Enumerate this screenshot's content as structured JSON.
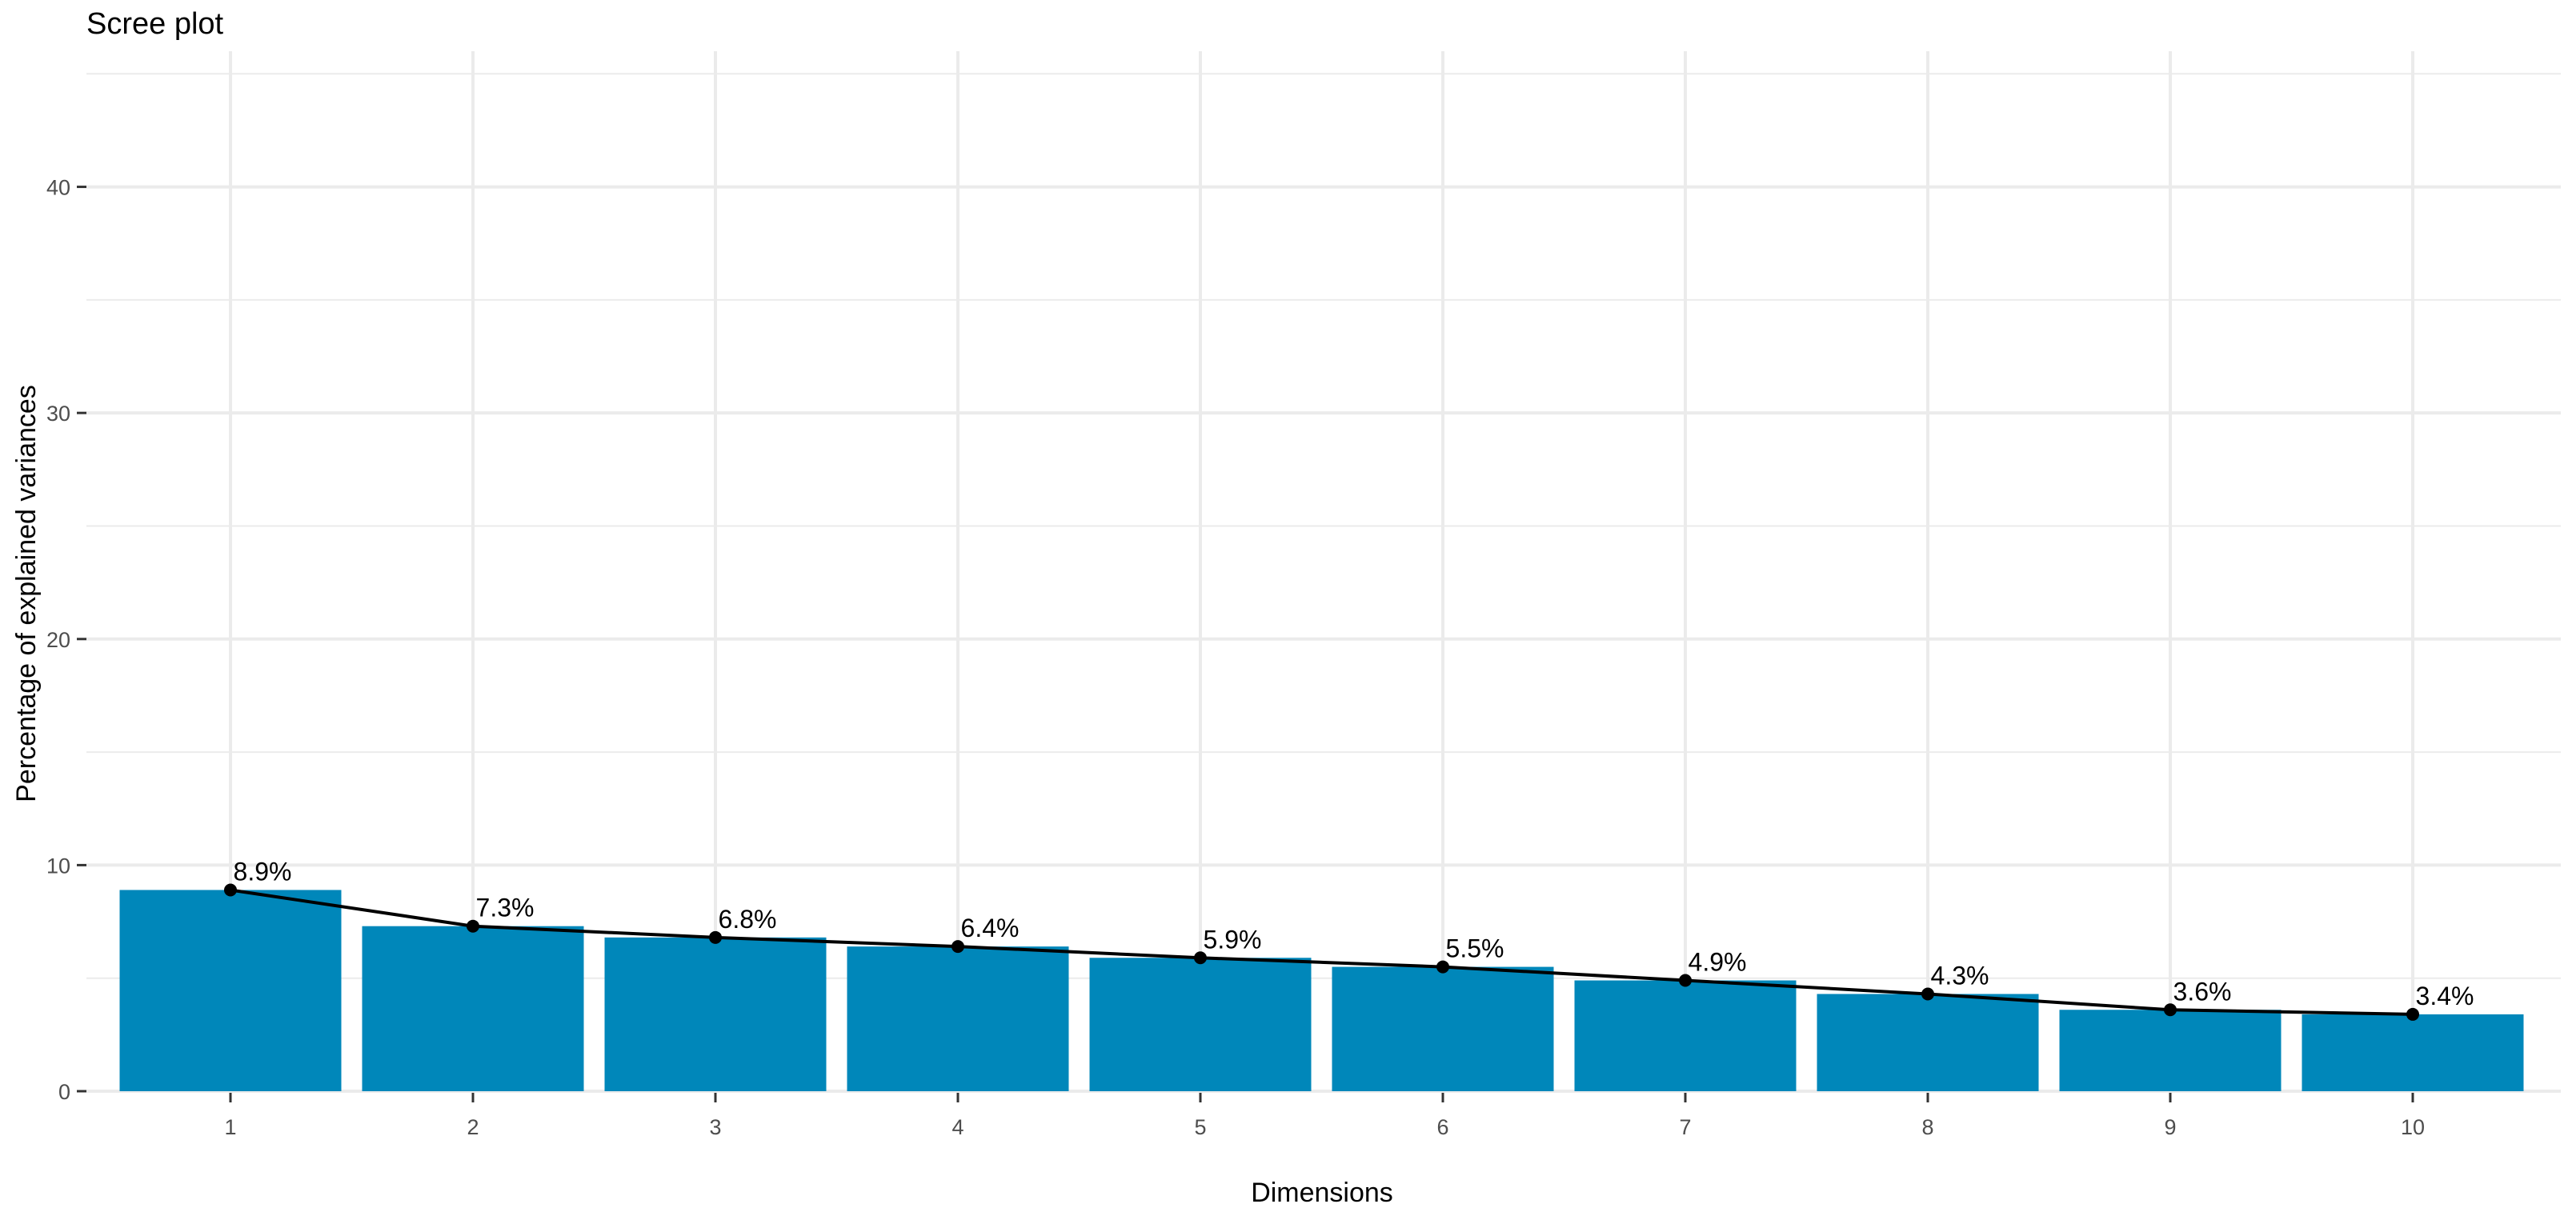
{
  "chart_data": {
    "type": "bar",
    "title": "Scree plot",
    "xlabel": "Dimensions",
    "ylabel": "Percentage of explained variances",
    "categories": [
      "1",
      "2",
      "3",
      "4",
      "5",
      "6",
      "7",
      "8",
      "9",
      "10"
    ],
    "values": [
      8.9,
      7.3,
      6.8,
      6.4,
      5.9,
      5.5,
      4.9,
      4.3,
      3.6,
      3.4
    ],
    "data_labels": [
      "8.9%",
      "7.3%",
      "6.8%",
      "6.4%",
      "5.9%",
      "5.5%",
      "4.9%",
      "4.3%",
      "3.6%",
      "3.4%"
    ],
    "yticks": [
      0,
      10,
      20,
      30,
      40
    ],
    "ylim": [
      0,
      46
    ],
    "grid": true,
    "line_overlay": true,
    "colors": {
      "bar": "#0087BA",
      "line": "#000000",
      "grid": "#EBEBEB",
      "background": "#FFFFFF"
    }
  }
}
